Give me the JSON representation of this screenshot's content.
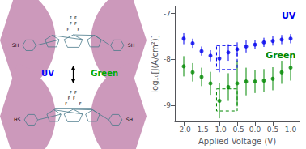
{
  "chart_data": {
    "type": "scatter",
    "xlabel": "Applied Voltage (V)",
    "ylabel": "log₁₀[J(A/cm²)]",
    "xlim": [
      -2.25,
      1.25
    ],
    "ylim": [
      -9.35,
      -6.85
    ],
    "xticks": [
      {
        "value": -2.0,
        "label": "-2.0"
      },
      {
        "value": -1.5,
        "label": "-1.5"
      },
      {
        "value": -1.0,
        "label": "-1.0"
      },
      {
        "value": -0.5,
        "label": "-0.5"
      },
      {
        "value": 0.0,
        "label": "0.0"
      },
      {
        "value": 0.5,
        "label": "0.5"
      },
      {
        "value": 1.0,
        "label": "1.0"
      }
    ],
    "yticks": [
      -9,
      -8,
      -7
    ],
    "grid": false,
    "x": [
      -2.0,
      -1.75,
      -1.5,
      -1.25,
      -1.0,
      -0.75,
      -0.5,
      -0.25,
      0.0,
      0.25,
      0.5,
      0.75,
      1.0
    ],
    "series": [
      {
        "name": "UV",
        "color": "#0000EE",
        "marker": "circle",
        "values": [
          -7.55,
          -7.65,
          -7.82,
          -7.92,
          -7.98,
          -7.85,
          -7.78,
          -7.72,
          -7.68,
          -7.63,
          -7.6,
          -7.57,
          -7.55
        ],
        "error_lo": [
          0.12,
          0.1,
          0.1,
          0.12,
          0.3,
          0.18,
          0.15,
          0.13,
          0.1,
          0.1,
          0.1,
          0.1,
          0.1
        ],
        "error_hi": [
          0.12,
          0.1,
          0.1,
          0.12,
          0.3,
          0.18,
          0.15,
          0.13,
          0.1,
          0.1,
          0.1,
          0.1,
          0.1
        ]
      },
      {
        "name": "Green",
        "color": "#008800",
        "marker": "circle",
        "values": [
          -8.15,
          -8.28,
          -8.38,
          -8.52,
          -8.9,
          -8.6,
          -8.52,
          -8.48,
          -8.48,
          -8.46,
          -8.42,
          -8.28,
          -8.18
        ],
        "error_lo": [
          0.22,
          0.2,
          0.2,
          0.25,
          0.38,
          0.3,
          0.5,
          0.3,
          0.25,
          0.25,
          0.25,
          0.25,
          0.28
        ],
        "error_hi": [
          0.22,
          0.2,
          0.2,
          0.25,
          0.38,
          0.3,
          0.5,
          0.3,
          0.25,
          0.25,
          0.25,
          0.25,
          0.28
        ]
      }
    ],
    "boxes": [
      {
        "x": -1.08,
        "y": -8.22,
        "width": 0.58,
        "height": 0.52,
        "color": "#0000EE",
        "line_style": "dashed"
      },
      {
        "x": -1.08,
        "y": -9.12,
        "width": 0.58,
        "height": 0.48,
        "color": "#008800",
        "line_style": "dashed"
      }
    ],
    "diagram": {
      "color": "#CC99BB",
      "molecule_color": "#4A7A8A",
      "arrow_color": "#000000",
      "switch_labels": [
        {
          "text": "UV",
          "color": "#0000FF"
        },
        {
          "text": "Green",
          "color": "#00AA00"
        }
      ],
      "open_form_labels": [
        "SH",
        "SH",
        "F",
        "F",
        "F  F",
        "F  F"
      ],
      "closed_form_labels": [
        "HS",
        "SH",
        "F",
        "F",
        "F  F",
        "F  F"
      ]
    }
  }
}
